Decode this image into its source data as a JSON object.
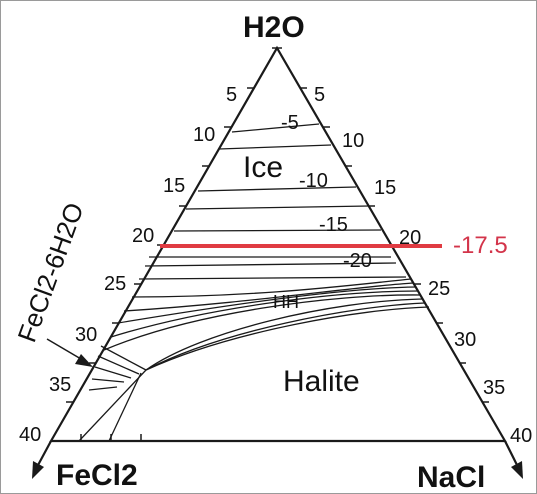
{
  "diagram": {
    "vertices": {
      "top": "H2O",
      "bottom_left": "FeCl2",
      "bottom_right": "NaCl"
    },
    "left_ticks": [
      "5",
      "10",
      "15",
      "20",
      "25",
      "30",
      "35",
      "40"
    ],
    "right_ticks": [
      "5",
      "10",
      "15",
      "20",
      "25",
      "30",
      "35",
      "40"
    ],
    "isotherms": [
      "-5",
      "-10",
      "-15",
      "-20"
    ],
    "fields": {
      "ice": "Ice",
      "hh": "HH",
      "halite": "Halite"
    },
    "hydrate_label": "FeCl2-6H2O",
    "highlight": {
      "value": "-17.5",
      "color": "#e03b42"
    },
    "colors": {
      "lines": "#1a1a1a",
      "frame": "#9a9a9a",
      "highlight_text": "#d3344a"
    }
  }
}
